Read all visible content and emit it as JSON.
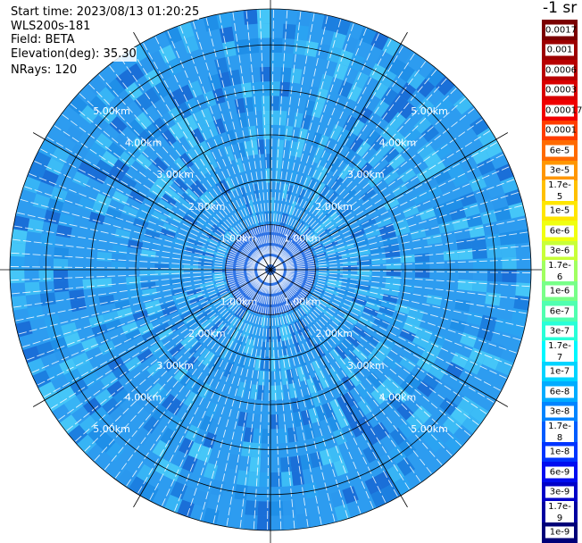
{
  "header": {
    "start_time": "Start time: 2023/08/13 01:20:25",
    "instrument": "WLS200s-181",
    "field": "Field: BETA",
    "elevation": "Elevation(deg): 35.30",
    "nrays": "NRays: 120"
  },
  "unit_label": "-1 sr",
  "range_labels": [
    "1.00km",
    "2.00km",
    "3.00km",
    "4.00km",
    "5.00km"
  ],
  "range_rings_km": [
    1,
    2,
    3,
    4,
    5
  ],
  "max_range_km": 5.8,
  "colorbar": [
    {
      "label": "0.0017",
      "color": "#7a0000"
    },
    {
      "label": "0.001",
      "color": "#9c0000"
    },
    {
      "label": "0.0006",
      "color": "#b80000"
    },
    {
      "label": "0.0003",
      "color": "#d80000"
    },
    {
      "label": "0.00017",
      "color": "#f00000"
    },
    {
      "label": "0.0001",
      "color": "#ff3c00"
    },
    {
      "label": "6e-5",
      "color": "#ff6a00"
    },
    {
      "label": "3e-5",
      "color": "#ff9600"
    },
    {
      "label": "1.7e-5",
      "color": "#ffc000"
    },
    {
      "label": "1e-5",
      "color": "#ffe600"
    },
    {
      "label": "6e-6",
      "color": "#f0ff10"
    },
    {
      "label": "3e-6",
      "color": "#c8ff38"
    },
    {
      "label": "1.7e-6",
      "color": "#a0ff60"
    },
    {
      "label": "1e-6",
      "color": "#78ff88"
    },
    {
      "label": "6e-7",
      "color": "#50ffb0"
    },
    {
      "label": "3e-7",
      "color": "#28ffd8"
    },
    {
      "label": "1.7e-7",
      "color": "#00f8ff"
    },
    {
      "label": "1e-7",
      "color": "#00d4ff"
    },
    {
      "label": "6e-8",
      "color": "#00acff"
    },
    {
      "label": "3e-8",
      "color": "#0084ff"
    },
    {
      "label": "1.7e-8",
      "color": "#005cff"
    },
    {
      "label": "1e-8",
      "color": "#0034ff"
    },
    {
      "label": "6e-9",
      "color": "#000cf0"
    },
    {
      "label": "3e-9",
      "color": "#0000c8"
    },
    {
      "label": "1.7e-9",
      "color": "#0000a0"
    },
    {
      "label": "1e-9",
      "color": "#000078"
    }
  ],
  "palette": {
    "background_ring": "#2d9cf0",
    "inner_disk": "#2f74e6",
    "grid": "#000000",
    "ray_gap": "#ffffff"
  }
}
